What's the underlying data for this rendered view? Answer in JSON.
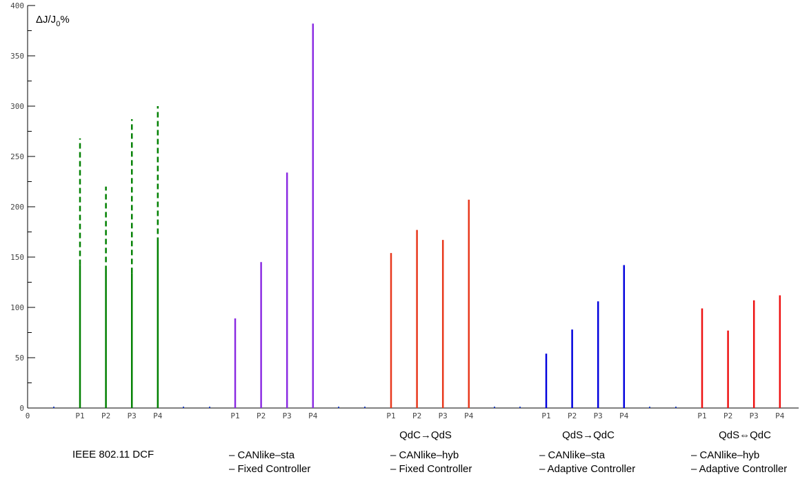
{
  "chart_data": {
    "type": "bar",
    "ylabel": {
      "main": "ΔJ/J",
      "sub": "0",
      "tail": "%"
    },
    "ylim": [
      0,
      400
    ],
    "yticks": [
      0,
      50,
      100,
      150,
      200,
      250,
      300,
      350,
      400
    ],
    "x_zero_label": "0",
    "grid": false,
    "groups": [
      {
        "color": "#008000",
        "categories": [
          "P1",
          "P2",
          "P3",
          "P4"
        ],
        "values": [
          142,
          136,
          134,
          164
        ],
        "extended_values": [
          268,
          220,
          287,
          300
        ],
        "title": "",
        "legend": [
          "IEEE 802.11 DCF"
        ]
      },
      {
        "color": "#8a2be2",
        "categories": [
          "P1",
          "P2",
          "P3",
          "P4"
        ],
        "values": [
          89,
          145,
          234,
          382
        ],
        "title": "",
        "legend": [
          "– CANlike–sta",
          "– Fixed Controller"
        ]
      },
      {
        "color": "#e8371b",
        "categories": [
          "P1",
          "P2",
          "P3",
          "P4"
        ],
        "values": [
          154,
          177,
          167,
          207
        ],
        "title": "QdC→QdS",
        "legend": [
          "– CANlike–hyb",
          "– Fixed Controller"
        ]
      },
      {
        "color": "#0000dd",
        "categories": [
          "P1",
          "P2",
          "P3",
          "P4"
        ],
        "values": [
          54,
          78,
          106,
          142
        ],
        "title": "QdS→QdC",
        "legend": [
          "– CANlike–sta",
          "– Adaptive Controller"
        ]
      },
      {
        "color": "#ee1111",
        "categories": [
          "P1",
          "P2",
          "P3",
          "P4"
        ],
        "values": [
          99,
          77,
          107,
          112
        ],
        "title": "QdS⇔QdC",
        "legend": [
          "– CANlike–hyb",
          "– Adaptive Controller"
        ]
      }
    ]
  }
}
